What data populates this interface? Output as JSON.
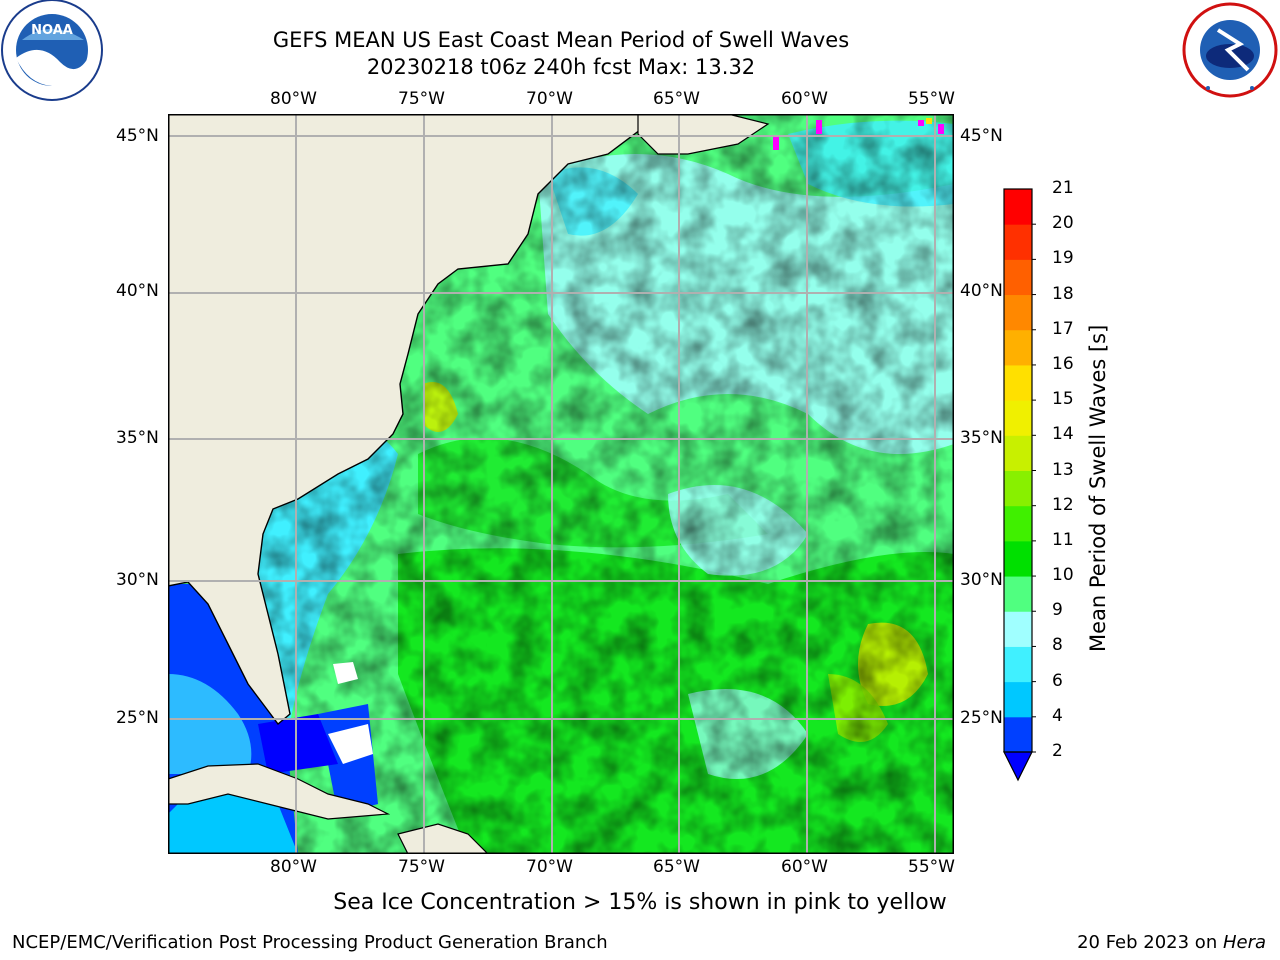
{
  "title": {
    "line1": "GEFS MEAN US East Coast Mean Period of Swell Waves",
    "line2": "20230218 t06z 240h fcst   Max: 13.32"
  },
  "map": {
    "lon_labels": [
      "80°W",
      "75°W",
      "70°W",
      "65°W",
      "60°W",
      "55°W"
    ],
    "lat_labels": [
      "45°N",
      "40°N",
      "35°N",
      "30°N",
      "25°N"
    ],
    "extent": {
      "lon_min": -85,
      "lon_max": -54.3,
      "lat_min": 20.5,
      "lat_max": 45.8
    }
  },
  "colorbar": {
    "label": "Mean Period of Swell Waves [s]",
    "ticks": [
      "2",
      "4",
      "6",
      "8",
      "9",
      "10",
      "11",
      "12",
      "13",
      "14",
      "15",
      "16",
      "17",
      "18",
      "19",
      "20",
      "21"
    ],
    "colors": [
      "#0040ff",
      "#00c8ff",
      "#40f0ff",
      "#a0ffff",
      "#50ff80",
      "#00e000",
      "#40f000",
      "#88f000",
      "#c8f000",
      "#f0f000",
      "#ffe000",
      "#ffb000",
      "#ff8800",
      "#ff6000",
      "#ff3000",
      "#ff0000"
    ],
    "extend_color": "#0000ff"
  },
  "colors": {
    "land": "#efedde",
    "ocean_dominant": "#50ff80",
    "sea_ice": "#ff00ff"
  },
  "logos": {
    "noaa": "NOAA",
    "nws": "NATIONAL WEATHER SERVICE"
  },
  "note": "Sea Ice Concentration > 15% is shown in pink to yellow",
  "footer": {
    "left": "NCEP/EMC/Verification Post Processing Product Generation Branch",
    "date": "20 Feb 2023 on ",
    "machine": "Hera"
  }
}
